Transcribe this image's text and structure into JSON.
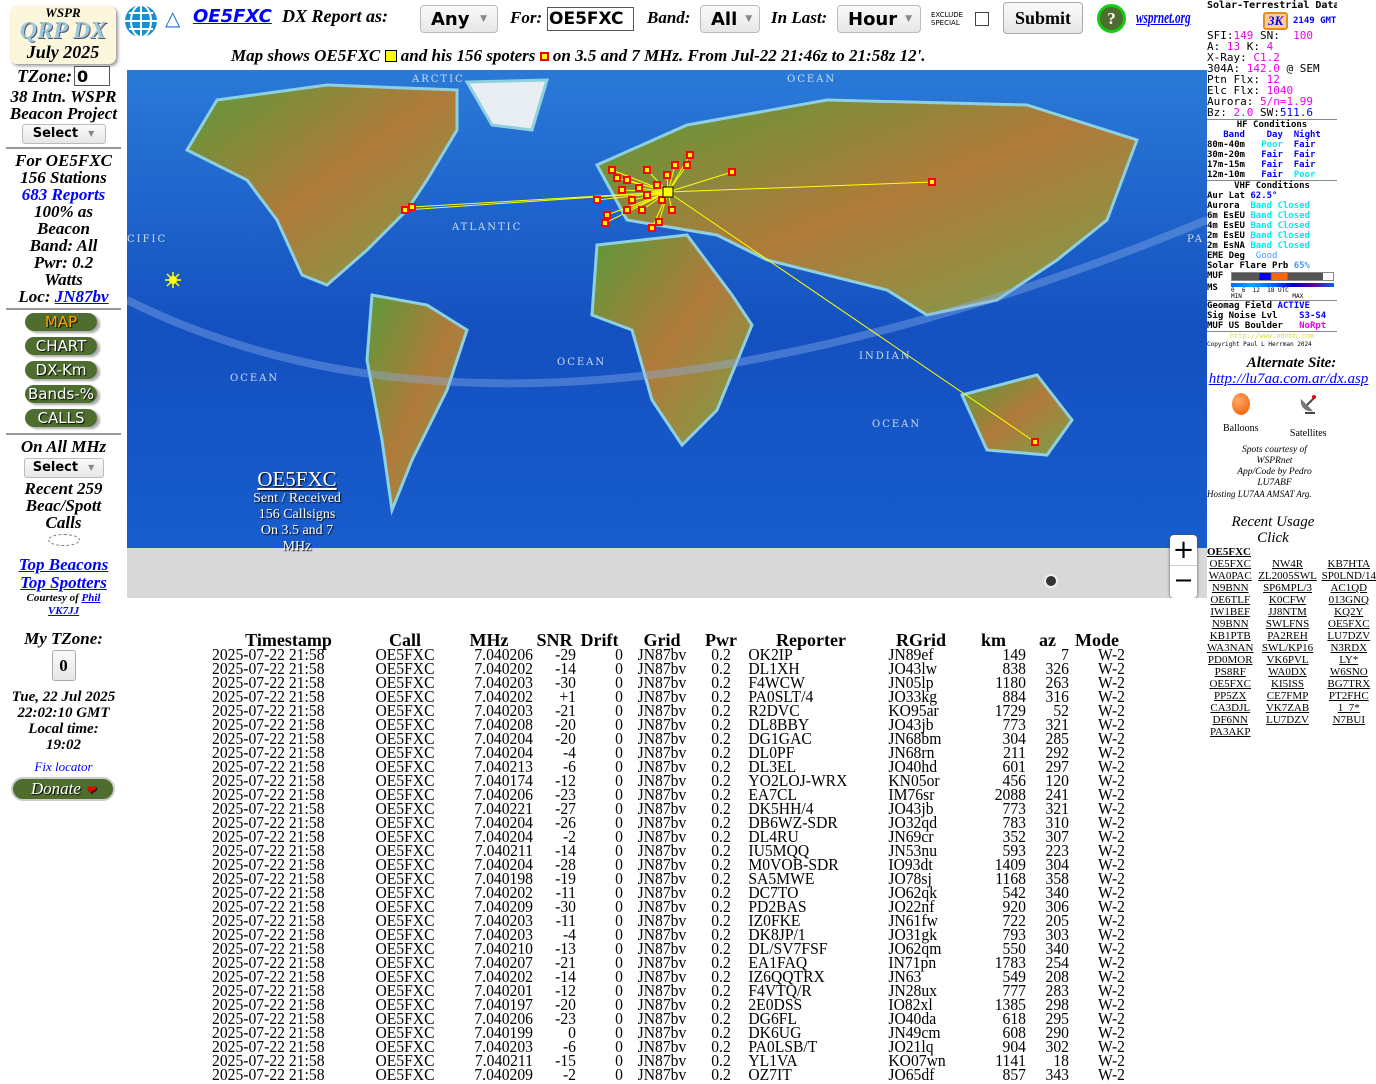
{
  "logo": {
    "line1": "WSPR",
    "line2": "QRP DX",
    "line3": "July 2025"
  },
  "sidebar": {
    "tzone_label": "TZone:",
    "tzone_value": "0",
    "project_label": "38 Intn. WSPR Beacon Project",
    "project_select": "Select",
    "for_label": "For OE5FXC",
    "stations": "156 Stations",
    "reports_link": "683 Reports",
    "beacon_pct": "100% as Beacon",
    "band": "Band: All",
    "pwr": "Pwr: 0.2 Watts",
    "loc_label": "Loc:",
    "loc_link": "JN87bv",
    "buttons": [
      "MAP",
      "CHART",
      "DX-Km",
      "Bands-%",
      "CALLS"
    ],
    "on_all_mhz": "On All MHz",
    "mhz_select": "Select",
    "recent_calls": "Recent 259 Beac/Spott Calls",
    "top_beacons": "Top Beacons",
    "top_spotters": "Top Spotters",
    "courtesy": "Courtesy of",
    "courtesy_link": "Phil VK7JJ",
    "my_tzone": "My TZone:",
    "my_tzone_btn": "0",
    "datetime": "Tue, 22 Jul 2025 22:02:10 GMT",
    "local_time_label": "Local time:",
    "local_time": "19:02",
    "fix_locator": "Fix locator",
    "donate": "Donate"
  },
  "topbar": {
    "callsign_link": "OE5FXC",
    "report_as_label": "DX Report as:",
    "report_as_value": "Any",
    "for_label": "For:",
    "for_value": "OE5FXC",
    "band_label": "Band:",
    "band_value": "All",
    "in_last_label": "In Last:",
    "in_last_value": "Hour",
    "exclude_label_1": "EXCLUDE",
    "exclude_label_2": "SPECIAL",
    "exclude_checked": false,
    "submit": "Submit",
    "help": "?",
    "wsprnet_link": "wsprnet.org"
  },
  "subtitle": {
    "part1": "Map shows OE5FXC",
    "part2": "and his 156 spoters",
    "part3": "on 3.5 and 7 MHz. From Jul-22 21:46z to 21:58z 12'."
  },
  "map": {
    "labels": [
      "ARCTIC",
      "OCEAN",
      "ATLANTIC",
      "CIFIC",
      "PA",
      "OCEAN",
      "INDIAN",
      "OCEAN",
      "OCEAN"
    ],
    "overlay": {
      "call": "OE5FXC",
      "line1": "Sent / Received",
      "line2": "156 Callsigns",
      "line3": "On 3.5 and 7",
      "line4": "MHz"
    },
    "zoom_in": "+",
    "zoom_out": "−",
    "colors": {
      "ocean": "#1558c8",
      "line": "#ffff00",
      "spot": "#ff0000"
    }
  },
  "solar": {
    "title": "Solar-Terrestrial Data",
    "badge": "3K",
    "time": "2149 GMT",
    "sfi": "149",
    "sn": "100",
    "a": "13",
    "k": "4",
    "xray": "C1.2",
    "a304": "142.0",
    "a304_src": "@ SEM",
    "ptn_flx": "12",
    "elc_flx": "1040",
    "aurora": "5/n=1.99",
    "bz": "2.0",
    "sw": "511.6",
    "hf_title": "HF Conditions",
    "hf_head": [
      "Band",
      "Day",
      "Night"
    ],
    "hf": [
      [
        "80m-40m",
        "Poor",
        "Fair"
      ],
      [
        "30m-20m",
        "Fair",
        "Fair"
      ],
      [
        "17m-15m",
        "Fair",
        "Fair"
      ],
      [
        "12m-10m",
        "Fair",
        "Poor"
      ]
    ],
    "vhf_title": "VHF Conditions",
    "aur_lat": "62.5°",
    "vhf": [
      [
        "Aurora",
        "Band Closed"
      ],
      [
        "6m EsEU",
        "Band Closed"
      ],
      [
        "4m EsEU",
        "Band Closed"
      ],
      [
        "2m EsEU",
        "Band Closed"
      ],
      [
        "2m EsNA",
        "Band Closed"
      ]
    ],
    "eme": "Good",
    "flare": "65%",
    "muf_label": "MUF",
    "ms_label": "MS",
    "scale": "0  6  12  18 UTC",
    "scale2": "MIN              MAX",
    "geomag": "ACTIVE",
    "noise": "S3-S4",
    "muf_boulder": "NoRpt",
    "url": "http://www.n0nbh.com",
    "copyright": "Copyright Paul L Herrman 2024"
  },
  "right": {
    "alt_site_label": "Alternate Site:",
    "alt_site_link": "http://lu7aa.com.ar/dx.asp",
    "balloons": "Balloons",
    "satellites": "Satellites",
    "credits": [
      "Spots courtesy of",
      "WSPRnet",
      "App/Code by Pedro",
      "LU7ABF"
    ],
    "hosting": "Hosting LU7AA AMSAT Arg.",
    "recent_usage": "Recent Usage",
    "click": "Click",
    "current_call": "OE5FXC",
    "usage_calls": [
      "OE5FXC",
      "NW4R",
      "KB7HTA",
      "WA0PAC",
      "ZL2005SWL",
      "SP0LND/14",
      "N9BNN",
      "SP6MPL/3",
      "AC1QD",
      "OE6TLF",
      "K0CFW",
      "013GNQ",
      "IW1BEF",
      "JJ8NTM",
      "KQ2Y",
      "N9BNN",
      "SWLFNS",
      "OE5FXC",
      "KB1PTB",
      "PA2REH",
      "LU7DZV",
      "WA3NAN",
      "SWL/KP16",
      "N3RDX",
      "PD0MOR",
      "VK6PVL",
      "LY*",
      "PS8RF",
      "WA0DX",
      "W6SNO",
      "OE5FXC",
      "KI5ISS",
      "BG7TRX",
      "PP5ZX",
      "CE7FMP",
      "PT2FHC",
      "CA3DJL",
      "VK7ZAB",
      "1_7*",
      "DF6NN",
      "LU7DZV",
      "N7BUI",
      "PA3AKP"
    ]
  },
  "table": {
    "headers": [
      "Timestamp",
      "Call",
      "MHz",
      "SNR",
      "Drift",
      "Grid",
      "Pwr",
      "Reporter",
      "RGrid",
      "km",
      "az",
      "Mode"
    ],
    "rows": [
      [
        "2025-07-22 21:58",
        "OE5FXC",
        "7.040206",
        "-29",
        "0",
        "JN87bv",
        "0.2",
        "OK2IP",
        "JN89ef",
        "149",
        "7",
        "W-2"
      ],
      [
        "2025-07-22 21:58",
        "OE5FXC",
        "7.040202",
        "-14",
        "0",
        "JN87bv",
        "0.2",
        "DL1XH",
        "JO43lw",
        "838",
        "326",
        "W-2"
      ],
      [
        "2025-07-22 21:58",
        "OE5FXC",
        "7.040203",
        "-30",
        "0",
        "JN87bv",
        "0.2",
        "F4WCW",
        "JN05lp",
        "1180",
        "263",
        "W-2"
      ],
      [
        "2025-07-22 21:58",
        "OE5FXC",
        "7.040202",
        "+1",
        "0",
        "JN87bv",
        "0.2",
        "PA0SLT/4",
        "JO33kg",
        "884",
        "316",
        "W-2"
      ],
      [
        "2025-07-22 21:58",
        "OE5FXC",
        "7.040203",
        "-21",
        "0",
        "JN87bv",
        "0.2",
        "R2DVC",
        "KO95ar",
        "1729",
        "52",
        "W-2"
      ],
      [
        "2025-07-22 21:58",
        "OE5FXC",
        "7.040208",
        "-20",
        "0",
        "JN87bv",
        "0.2",
        "DL8BBY",
        "JO43jb",
        "773",
        "321",
        "W-2"
      ],
      [
        "2025-07-22 21:58",
        "OE5FXC",
        "7.040204",
        "-20",
        "0",
        "JN87bv",
        "0.2",
        "DG1GAC",
        "JN68bm",
        "304",
        "285",
        "W-2"
      ],
      [
        "2025-07-22 21:58",
        "OE5FXC",
        "7.040204",
        "-4",
        "0",
        "JN87bv",
        "0.2",
        "DL0PF",
        "JN68rn",
        "211",
        "292",
        "W-2"
      ],
      [
        "2025-07-22 21:58",
        "OE5FXC",
        "7.040213",
        "-6",
        "0",
        "JN87bv",
        "0.2",
        "DL3EL",
        "JO40hd",
        "601",
        "297",
        "W-2"
      ],
      [
        "2025-07-22 21:58",
        "OE5FXC",
        "7.040174",
        "-12",
        "0",
        "JN87bv",
        "0.2",
        "YO2LOJ-WRX",
        "KN05or",
        "456",
        "120",
        "W-2"
      ],
      [
        "2025-07-22 21:58",
        "OE5FXC",
        "7.040206",
        "-23",
        "0",
        "JN87bv",
        "0.2",
        "EA7CL",
        "IM76sr",
        "2088",
        "241",
        "W-2"
      ],
      [
        "2025-07-22 21:58",
        "OE5FXC",
        "7.040221",
        "-27",
        "0",
        "JN87bv",
        "0.2",
        "DK5HH/4",
        "JO43jb",
        "773",
        "321",
        "W-2"
      ],
      [
        "2025-07-22 21:58",
        "OE5FXC",
        "7.040204",
        "-26",
        "0",
        "JN87bv",
        "0.2",
        "DB6WZ-SDR",
        "JO32qd",
        "783",
        "310",
        "W-2"
      ],
      [
        "2025-07-22 21:58",
        "OE5FXC",
        "7.040204",
        "-2",
        "0",
        "JN87bv",
        "0.2",
        "DL4RU",
        "JN69cr",
        "352",
        "307",
        "W-2"
      ],
      [
        "2025-07-22 21:58",
        "OE5FXC",
        "7.040211",
        "-14",
        "0",
        "JN87bv",
        "0.2",
        "IU5MQQ",
        "JN53nu",
        "593",
        "223",
        "W-2"
      ],
      [
        "2025-07-22 21:58",
        "OE5FXC",
        "7.040204",
        "-28",
        "0",
        "JN87bv",
        "0.2",
        "M0VOB-SDR",
        "IO93dt",
        "1409",
        "304",
        "W-2"
      ],
      [
        "2025-07-22 21:58",
        "OE5FXC",
        "7.040198",
        "-19",
        "0",
        "JN87bv",
        "0.2",
        "SA5MWE",
        "JO78sj",
        "1168",
        "358",
        "W-2"
      ],
      [
        "2025-07-22 21:58",
        "OE5FXC",
        "7.040202",
        "-11",
        "0",
        "JN87bv",
        "0.2",
        "DC7TO",
        "JO62qk",
        "542",
        "340",
        "W-2"
      ],
      [
        "2025-07-22 21:58",
        "OE5FXC",
        "7.040209",
        "-30",
        "0",
        "JN87bv",
        "0.2",
        "PD2BAS",
        "JO22nf",
        "920",
        "306",
        "W-2"
      ],
      [
        "2025-07-22 21:58",
        "OE5FXC",
        "7.040203",
        "-11",
        "0",
        "JN87bv",
        "0.2",
        "IZ0FKE",
        "JN61fw",
        "722",
        "205",
        "W-2"
      ],
      [
        "2025-07-22 21:58",
        "OE5FXC",
        "7.040203",
        "-4",
        "0",
        "JN87bv",
        "0.2",
        "DK8JP/1",
        "JO31gk",
        "793",
        "303",
        "W-2"
      ],
      [
        "2025-07-22 21:58",
        "OE5FXC",
        "7.040210",
        "-13",
        "0",
        "JN87bv",
        "0.2",
        "DL/SV7FSF",
        "JO62qm",
        "550",
        "340",
        "W-2"
      ],
      [
        "2025-07-22 21:58",
        "OE5FXC",
        "7.040207",
        "-21",
        "0",
        "JN87bv",
        "0.2",
        "EA1FAQ",
        "IN71pn",
        "1783",
        "254",
        "W-2"
      ],
      [
        "2025-07-22 21:58",
        "OE5FXC",
        "7.040202",
        "-14",
        "0",
        "JN87bv",
        "0.2",
        "IZ6QQTRX",
        "JN63",
        "549",
        "208",
        "W-2"
      ],
      [
        "2025-07-22 21:58",
        "OE5FXC",
        "7.040201",
        "-12",
        "0",
        "JN87bv",
        "0.2",
        "F4VTQ/R",
        "JN28ux",
        "777",
        "283",
        "W-2"
      ],
      [
        "2025-07-22 21:58",
        "OE5FXC",
        "7.040197",
        "-20",
        "0",
        "JN87bv",
        "0.2",
        "2E0DSS",
        "IO82xl",
        "1385",
        "298",
        "W-2"
      ],
      [
        "2025-07-22 21:58",
        "OE5FXC",
        "7.040206",
        "-23",
        "0",
        "JN87bv",
        "0.2",
        "DG6FL",
        "JO40da",
        "618",
        "295",
        "W-2"
      ],
      [
        "2025-07-22 21:58",
        "OE5FXC",
        "7.040199",
        "0",
        "0",
        "JN87bv",
        "0.2",
        "DK6UG",
        "JN49cm",
        "608",
        "290",
        "W-2"
      ],
      [
        "2025-07-22 21:58",
        "OE5FXC",
        "7.040203",
        "-6",
        "0",
        "JN87bv",
        "0.2",
        "PA0LSB/T",
        "JO21lq",
        "904",
        "302",
        "W-2"
      ],
      [
        "2025-07-22 21:58",
        "OE5FXC",
        "7.040211",
        "-15",
        "0",
        "JN87bv",
        "0.2",
        "YL1VA",
        "KO07wn",
        "1141",
        "18",
        "W-2"
      ],
      [
        "2025-07-22 21:58",
        "OE5FXC",
        "7.040209",
        "-2",
        "0",
        "JN87bv",
        "0.2",
        "OZ7IT",
        "JO65df",
        "857",
        "343",
        "W-2"
      ]
    ]
  }
}
